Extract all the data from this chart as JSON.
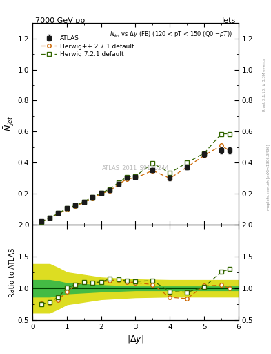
{
  "title_left": "7000 GeV pp",
  "title_right": "Jets",
  "ylabel_main": "$\\bar{N}_{jet}$",
  "ylabel_ratio": "Ratio to ATLAS",
  "xlabel": "$|\\Delta y|$",
  "right_label_top": "Rivet 3.1.10, ≥ 3.3M events",
  "right_label_bot": "mcplots.cern.ch [arXiv:1306.3436]",
  "watermark": "ATLAS_2011_S9126244",
  "x": [
    0.25,
    0.5,
    0.75,
    1.0,
    1.25,
    1.5,
    1.75,
    2.0,
    2.25,
    2.5,
    2.75,
    3.0,
    3.5,
    4.0,
    4.5,
    5.0,
    5.5,
    5.75
  ],
  "atlas_y": [
    0.02,
    0.042,
    0.073,
    0.104,
    0.123,
    0.147,
    0.178,
    0.204,
    0.222,
    0.263,
    0.3,
    0.305,
    0.35,
    0.3,
    0.37,
    0.455,
    0.48,
    0.48
  ],
  "atlas_yerr": [
    0.002,
    0.003,
    0.004,
    0.005,
    0.006,
    0.007,
    0.007,
    0.008,
    0.009,
    0.01,
    0.011,
    0.012,
    0.014,
    0.015,
    0.016,
    0.018,
    0.02,
    0.02
  ],
  "herwig_pp_y": [
    0.018,
    0.04,
    0.068,
    0.098,
    0.118,
    0.142,
    0.172,
    0.198,
    0.218,
    0.258,
    0.294,
    0.3,
    0.348,
    0.298,
    0.37,
    0.445,
    0.51,
    0.475
  ],
  "herwig7_y": [
    0.018,
    0.042,
    0.072,
    0.104,
    0.123,
    0.147,
    0.178,
    0.204,
    0.228,
    0.27,
    0.306,
    0.312,
    0.395,
    0.333,
    0.398,
    0.46,
    0.585,
    0.585
  ],
  "ratio_pp_y": [
    0.76,
    0.77,
    0.82,
    0.95,
    1.04,
    1.1,
    1.08,
    1.1,
    1.12,
    1.13,
    1.1,
    1.09,
    1.06,
    0.86,
    0.84,
    1.04,
    1.05,
    1.0
  ],
  "ratio_7_y": [
    0.75,
    0.79,
    0.86,
    1.01,
    1.06,
    1.1,
    1.09,
    1.1,
    1.15,
    1.14,
    1.12,
    1.11,
    1.12,
    0.95,
    0.94,
    1.02,
    1.26,
    1.3
  ],
  "band_x": [
    0.0,
    0.5,
    0.75,
    1.0,
    2.0,
    3.0,
    4.0,
    5.0,
    5.75,
    6.0
  ],
  "band_yellow_lo": [
    0.62,
    0.62,
    0.68,
    0.75,
    0.83,
    0.86,
    0.87,
    0.87,
    0.87,
    0.87
  ],
  "band_yellow_hi": [
    1.38,
    1.38,
    1.32,
    1.25,
    1.17,
    1.14,
    1.13,
    1.13,
    1.13,
    1.13
  ],
  "band_green_lo": [
    0.87,
    0.87,
    0.89,
    0.92,
    0.95,
    0.97,
    0.97,
    0.97,
    0.97,
    0.97
  ],
  "band_green_hi": [
    1.13,
    1.13,
    1.11,
    1.08,
    1.05,
    1.03,
    1.03,
    1.03,
    1.03,
    1.03
  ],
  "color_atlas": "#1a1a1a",
  "color_herwigpp": "#cc6600",
  "color_herwig7": "#336600",
  "color_band_green": "#44bb44",
  "color_band_yellow": "#dddd22",
  "color_ratio_line": "#004400",
  "xlim": [
    0,
    6.0
  ],
  "ylim_main": [
    0,
    1.3
  ],
  "ylim_ratio": [
    0.5,
    2.0
  ],
  "yticks_main": [
    0.2,
    0.4,
    0.6,
    0.8,
    1.0,
    1.2
  ],
  "yticks_ratio": [
    0.5,
    1.0,
    1.5,
    2.0
  ],
  "xticks": [
    0,
    1,
    2,
    3,
    4,
    5,
    6
  ]
}
